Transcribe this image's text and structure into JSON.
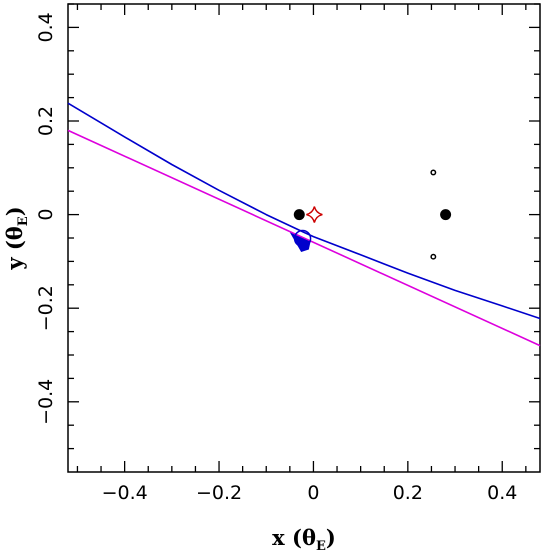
{
  "chart_data": {
    "type": "line",
    "xlabel": "x (θE)",
    "ylabel": "y (θE)",
    "xlabel_parts": {
      "prefix": "x (",
      "symbol": "θ",
      "sub": "E",
      "suffix": ")"
    },
    "ylabel_parts": {
      "prefix": "y (",
      "symbol": "θ",
      "sub": "E",
      "suffix": ")"
    },
    "xlim": [
      -0.52,
      0.48
    ],
    "ylim": [
      -0.55,
      0.45
    ],
    "x_ticks": [
      -0.4,
      -0.2,
      0,
      0.2,
      0.4
    ],
    "y_ticks": [
      -0.4,
      -0.2,
      0,
      0.2,
      0.4
    ],
    "x_tick_labels": [
      "−0.4",
      "−0.2",
      "0",
      "0.2",
      "0.4"
    ],
    "y_tick_labels": [
      "−0.4",
      "−0.2",
      "0",
      "0.2",
      "0.4"
    ],
    "grid": false,
    "series": [
      {
        "color": "#0000cc",
        "curve": "source trajectory (curved)",
        "x": [
          -0.52,
          -0.4,
          -0.3,
          -0.2,
          -0.1,
          -0.02,
          0.0,
          0.1,
          0.2,
          0.3,
          0.4,
          0.48
        ],
        "y": [
          0.238,
          0.166,
          0.107,
          0.052,
          0.0,
          -0.038,
          -0.047,
          -0.086,
          -0.125,
          -0.162,
          -0.195,
          -0.222
        ]
      },
      {
        "color": "#dd00dd",
        "curve": "straight trajectory",
        "x": [
          -0.52,
          0.48
        ],
        "y": [
          0.18,
          -0.28
        ]
      }
    ],
    "points": [
      {
        "shape": "filled-circle",
        "x": -0.03,
        "y": 0.0,
        "size": "large",
        "color": "#000000"
      },
      {
        "shape": "filled-circle",
        "x": 0.28,
        "y": 0.0,
        "size": "large",
        "color": "#000000"
      },
      {
        "shape": "small-circle",
        "x": 0.254,
        "y": 0.09,
        "size": "small",
        "color": "#000000"
      },
      {
        "shape": "small-circle",
        "x": 0.254,
        "y": -0.09,
        "size": "small",
        "color": "#000000"
      },
      {
        "shape": "caustic-star",
        "x": 0.002,
        "y": 0.0,
        "color": "#cc0000"
      },
      {
        "shape": "open-circle",
        "x": -0.023,
        "y": -0.051,
        "color": "#0000cc"
      },
      {
        "shape": "arrow",
        "x": -0.05,
        "y": -0.038,
        "direction": "left-up",
        "color": "#0000cc"
      }
    ],
    "colors": {
      "blue_curve": "#0000cc",
      "magenta_line": "#dd00dd",
      "caustic": "#cc0000",
      "lens": "#000000"
    }
  }
}
